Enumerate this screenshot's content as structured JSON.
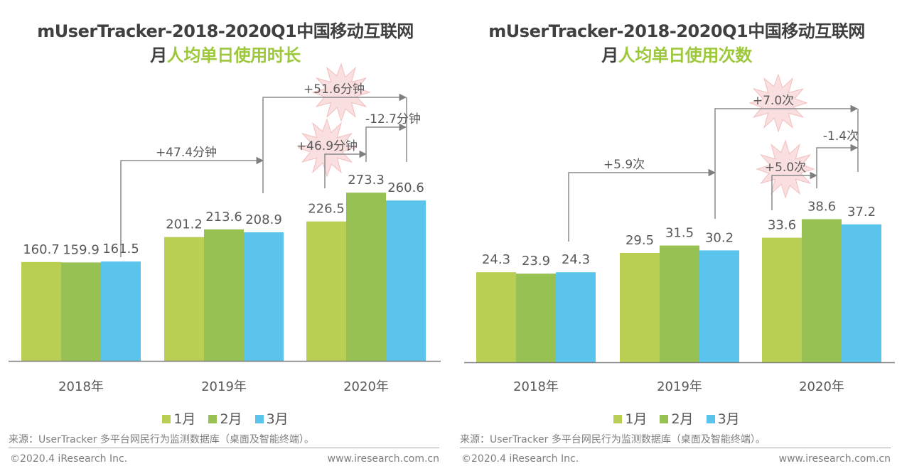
{
  "chart_data": [
    {
      "type": "bar",
      "title": "mUserTracker-2018-2020Q1中国移动互联网",
      "subtitle_prefix": "月",
      "subtitle_accent": "人均单日使用时长",
      "categories": [
        "2018年",
        "2019年",
        "2020年"
      ],
      "series": [
        {
          "name": "1月",
          "color": "#b8cf54",
          "values": [
            160.7,
            201.2,
            226.5
          ]
        },
        {
          "name": "2月",
          "color": "#98c154",
          "values": [
            159.9,
            213.6,
            273.3
          ]
        },
        {
          "name": "3月",
          "color": "#5bc4ec",
          "values": [
            161.5,
            208.9,
            260.6
          ]
        }
      ],
      "value_labels": [
        [
          "160.7",
          "159.9",
          "161.5"
        ],
        [
          "201.2",
          "213.6",
          "208.9"
        ],
        [
          "226.5",
          "273.3",
          "260.6"
        ]
      ],
      "ylim": [
        0,
        300
      ],
      "annotations": [
        {
          "text": "+47.4分钟",
          "from": "2018年 3月",
          "to": "2019年 3月",
          "burst": false
        },
        {
          "text": "+51.6分钟",
          "from": "2019年 3月",
          "to": "2020年 3月",
          "burst": true
        },
        {
          "text": "+46.9分钟",
          "from": "2020年 1月",
          "to": "2020年 2月",
          "burst": true
        },
        {
          "text": "-12.7分钟",
          "from": "2020年 2月",
          "to": "2020年 3月",
          "burst": false
        }
      ],
      "legend_position": "bottom",
      "grid": false,
      "source": "来源：UserTracker 多平台网民行为监测数据库（桌面及智能终端）。",
      "copyright": "©2020.4 iResearch Inc.",
      "website": "www.iresearch.com.cn"
    },
    {
      "type": "bar",
      "title": "mUserTracker-2018-2020Q1中国移动互联网",
      "subtitle_prefix": "月",
      "subtitle_accent": "人均单日使用次数",
      "categories": [
        "2018年",
        "2019年",
        "2020年"
      ],
      "series": [
        {
          "name": "1月",
          "color": "#b8cf54",
          "values": [
            24.3,
            29.5,
            33.6
          ]
        },
        {
          "name": "2月",
          "color": "#98c154",
          "values": [
            23.9,
            31.5,
            38.6
          ]
        },
        {
          "name": "3月",
          "color": "#5bc4ec",
          "values": [
            24.3,
            30.2,
            37.2
          ]
        }
      ],
      "value_labels": [
        [
          "24.3",
          "23.9",
          "24.3"
        ],
        [
          "29.5",
          "31.5",
          "30.2"
        ],
        [
          "33.6",
          "38.6",
          "37.2"
        ]
      ],
      "ylim": [
        0,
        45
      ],
      "annotations": [
        {
          "text": "+5.9次",
          "from": "2018年 3月",
          "to": "2019年 3月",
          "burst": false
        },
        {
          "text": "+7.0次",
          "from": "2019年 3月",
          "to": "2020年 3月",
          "burst": true
        },
        {
          "text": "+5.0次",
          "from": "2020年 1月",
          "to": "2020年 2月",
          "burst": true
        },
        {
          "text": "-1.4次",
          "from": "2020年 2月",
          "to": "2020年 3月",
          "burst": false
        }
      ],
      "legend_position": "bottom",
      "grid": false,
      "source": "来源：UserTracker 多平台网民行为监测数据库（桌面及智能终端）。",
      "copyright": "©2020.4 iResearch Inc.",
      "website": "www.iresearch.com.cn"
    }
  ]
}
